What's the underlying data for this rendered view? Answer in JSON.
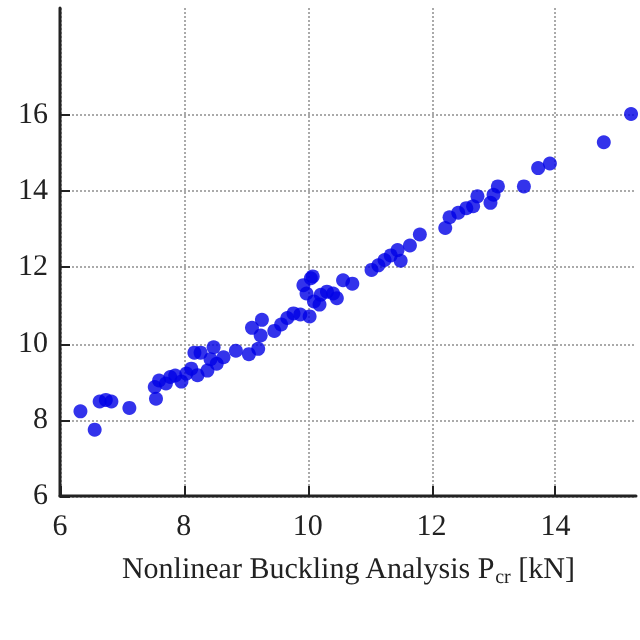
{
  "chart_data": {
    "type": "scatter",
    "xlabel": "Nonlinear Buckling Analysis P$_{cr}$ [kN]",
    "x": [
      6.33,
      6.56,
      6.64,
      6.74,
      6.83,
      7.12,
      7.53,
      7.55,
      7.6,
      7.71,
      7.78,
      7.86,
      7.96,
      8.04,
      8.12,
      8.22,
      8.17,
      8.27,
      8.38,
      8.43,
      8.48,
      8.53,
      8.64,
      8.84,
      9.05,
      9.1,
      9.2,
      9.24,
      9.26,
      9.46,
      9.57,
      9.67,
      9.77,
      9.88,
      10.03,
      9.93,
      10.08,
      9.98,
      10.19,
      10.05,
      10.1,
      10.21,
      10.31,
      10.41,
      10.47,
      10.57,
      10.72,
      11.03,
      11.14,
      11.24,
      11.34,
      11.45,
      11.5,
      11.65,
      11.81,
      12.22,
      12.29,
      12.43,
      12.56,
      12.67,
      12.74,
      12.95,
      13.0,
      13.07,
      13.49,
      13.72,
      13.91,
      14.78,
      15.22
    ],
    "series": [
      {
        "color": "#0000e6",
        "values": [
          8.22,
          7.74,
          8.48,
          8.52,
          8.48,
          8.31,
          8.86,
          8.55,
          9.03,
          8.95,
          9.12,
          9.16,
          9.0,
          9.21,
          9.34,
          9.17,
          9.76,
          9.76,
          9.29,
          9.59,
          9.9,
          9.47,
          9.64,
          9.81,
          9.72,
          10.41,
          9.86,
          10.21,
          10.62,
          10.33,
          10.5,
          10.67,
          10.79,
          10.76,
          10.71,
          11.53,
          11.76,
          11.31,
          11.02,
          11.71,
          11.1,
          11.28,
          11.36,
          11.31,
          11.19,
          11.66,
          11.57,
          11.93,
          12.05,
          12.19,
          12.31,
          12.45,
          12.17,
          12.57,
          12.86,
          13.03,
          13.31,
          13.43,
          13.55,
          13.6,
          13.86,
          13.69,
          13.9,
          14.12,
          14.12,
          14.6,
          14.72,
          15.28,
          16.02
        ]
      }
    ],
    "xlim": [
      6,
      15.3
    ],
    "xticks": [
      6,
      8,
      10,
      12,
      14
    ],
    "ylim": [
      6,
      18.8
    ],
    "yticks": [
      6,
      8,
      10,
      12,
      14,
      16
    ],
    "grid": true,
    "marker": "circle"
  }
}
